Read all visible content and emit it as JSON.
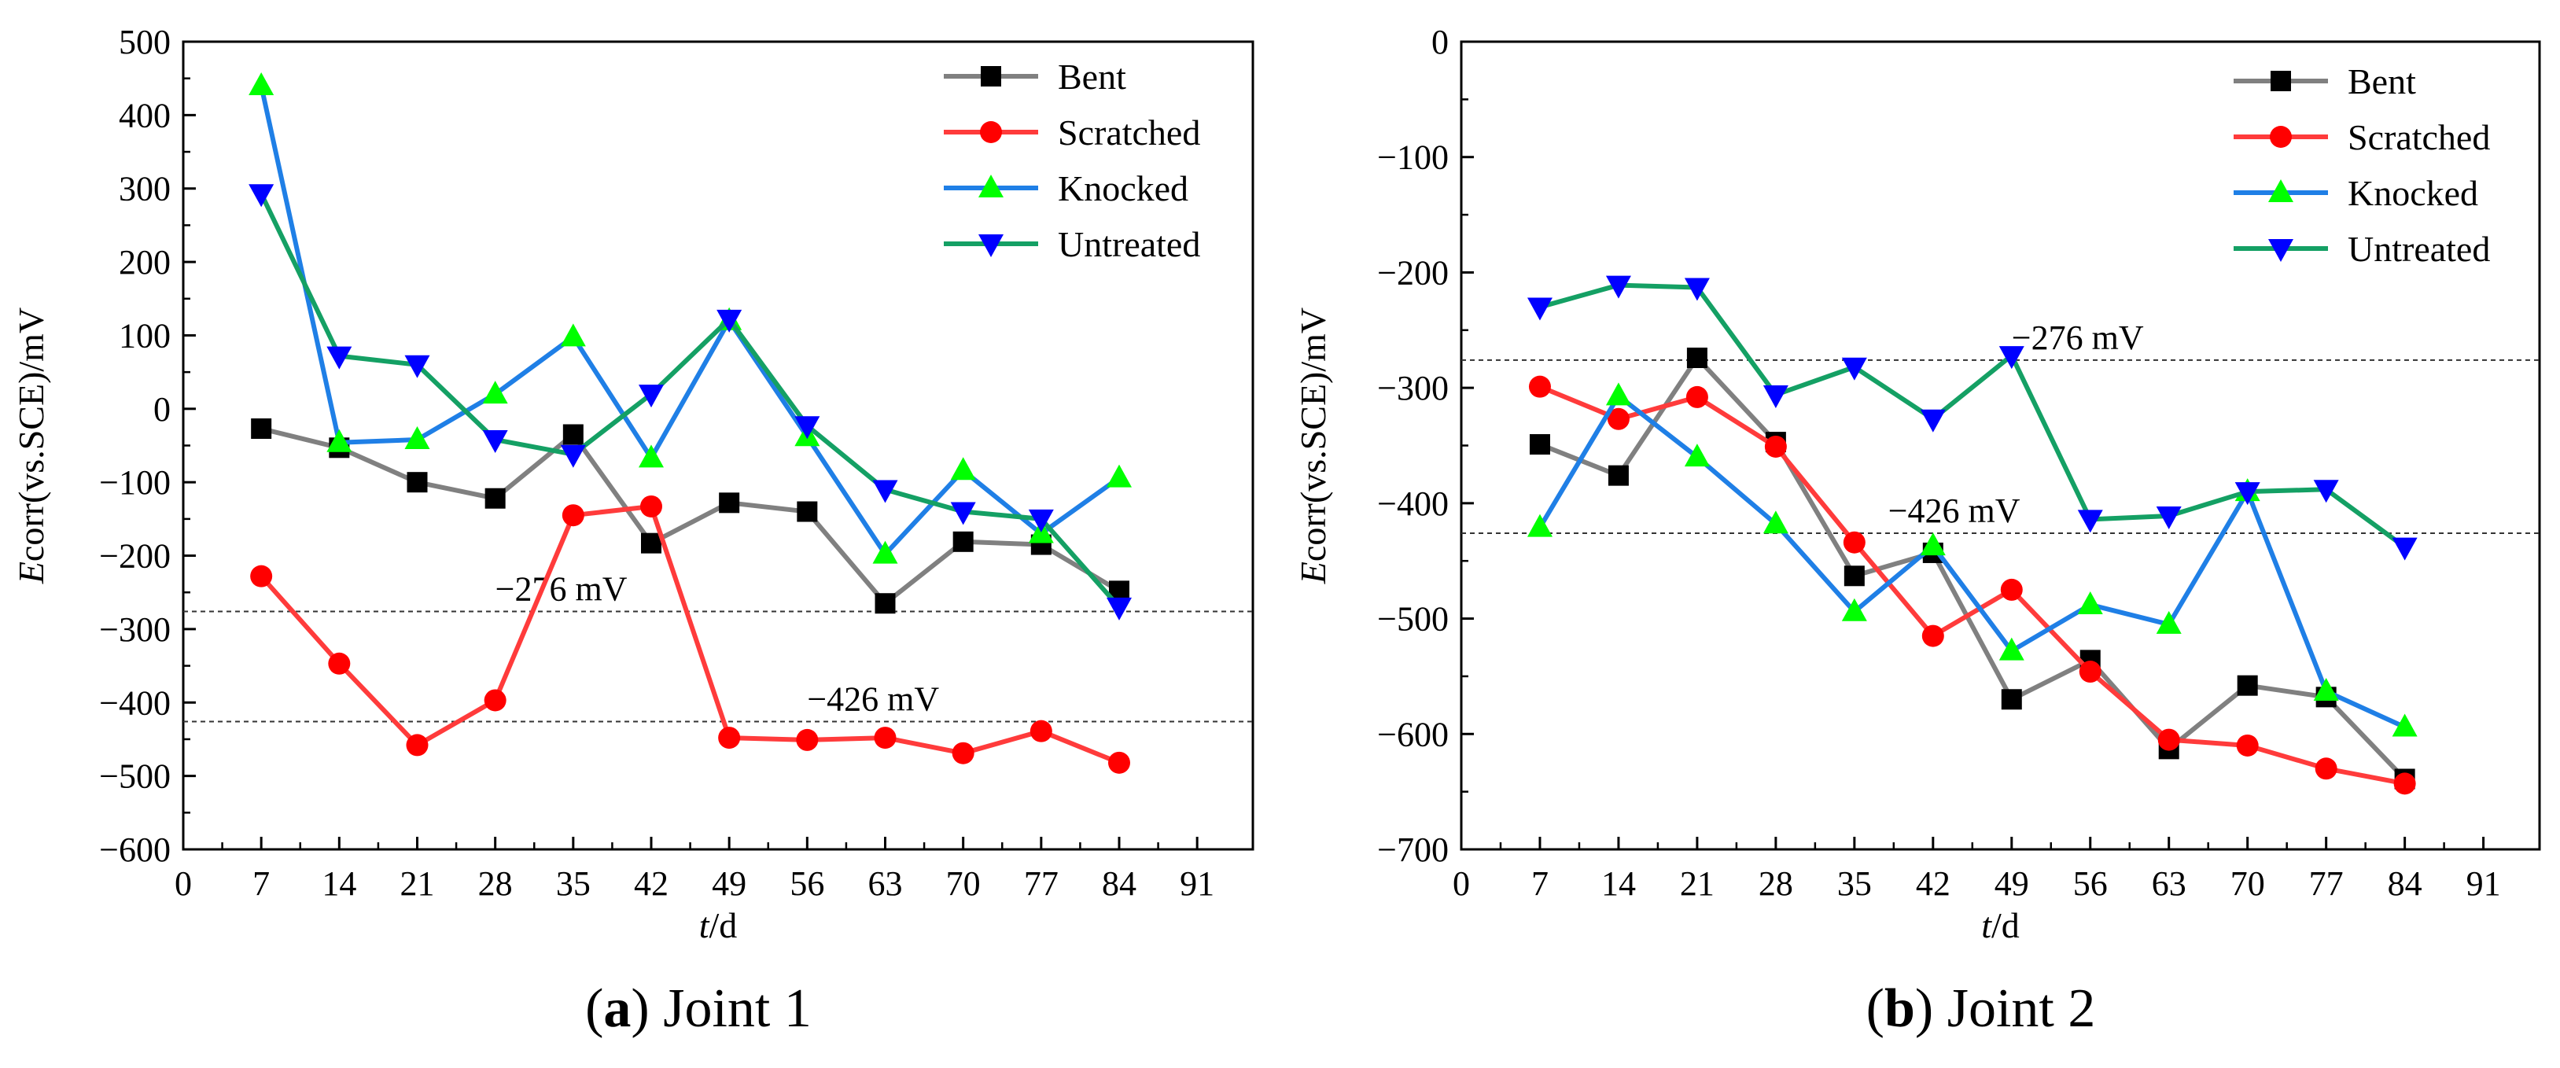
{
  "chart_data": [
    {
      "type": "line",
      "caption_letter": "a",
      "caption_text": "Joint 1",
      "x": [
        7,
        14,
        21,
        28,
        35,
        42,
        49,
        56,
        63,
        70,
        77,
        84
      ],
      "xlim": [
        0,
        96
      ],
      "xticks": [
        0,
        7,
        14,
        21,
        28,
        35,
        42,
        49,
        56,
        63,
        70,
        77,
        84,
        91
      ],
      "ylim": [
        -600,
        500
      ],
      "yticks": [
        -600,
        -500,
        -400,
        -300,
        -200,
        -100,
        0,
        100,
        200,
        300,
        400,
        500
      ],
      "xlabel_italic": "t",
      "xlabel_rest": "/d",
      "ylabel_italic": "E",
      "ylabel_rest": "corr(vs.SCE)/mV",
      "reference_lines": [
        {
          "value": -276,
          "label": "−276 mV",
          "label_x": 28
        },
        {
          "value": -426,
          "label": "−426 mV",
          "label_x": 56
        }
      ],
      "series": [
        {
          "name": "Bent",
          "color": "#808080",
          "marker": "square",
          "marker_color": "#000000",
          "values": [
            -27,
            -53,
            -100,
            -122,
            -35,
            -183,
            -128,
            -140,
            -265,
            -181,
            -185,
            -248
          ]
        },
        {
          "name": "Scratched",
          "color": "#ff3b3b",
          "marker": "circle",
          "marker_color": "#ff0000",
          "values": [
            -228,
            -347,
            -458,
            -397,
            -145,
            -133,
            -448,
            -451,
            -448,
            -469,
            -439,
            -482
          ]
        },
        {
          "name": "Knocked",
          "color": "#1f7fe6",
          "marker": "triangle-up",
          "marker_color": "#00ff00",
          "values": [
            440,
            -46,
            -42,
            20,
            98,
            -67,
            120,
            -38,
            -198,
            -84,
            -170,
            -94
          ]
        },
        {
          "name": "Untreated",
          "color": "#14a064",
          "marker": "triangle-down",
          "marker_color": "#0000ff",
          "values": [
            293,
            72,
            60,
            -42,
            -62,
            20,
            122,
            -23,
            -110,
            -140,
            -150,
            -270
          ]
        }
      ]
    },
    {
      "type": "line",
      "caption_letter": "b",
      "caption_text": "Joint 2",
      "x": [
        7,
        14,
        21,
        28,
        35,
        42,
        49,
        56,
        63,
        70,
        77,
        84
      ],
      "xlim": [
        0,
        96
      ],
      "xticks": [
        0,
        7,
        14,
        21,
        28,
        35,
        42,
        49,
        56,
        63,
        70,
        77,
        84,
        91
      ],
      "ylim": [
        -700,
        0
      ],
      "yticks": [
        -700,
        -600,
        -500,
        -400,
        -300,
        -200,
        -100,
        0
      ],
      "xlabel_italic": "t",
      "xlabel_rest": "/d",
      "ylabel_italic": "E",
      "ylabel_rest": "corr(vs.SCE)/mV",
      "reference_lines": [
        {
          "value": -276,
          "label": "−276 mV",
          "label_x": 49
        },
        {
          "value": -426,
          "label": "−426 mV",
          "label_x": 38
        }
      ],
      "series": [
        {
          "name": "Bent",
          "color": "#808080",
          "marker": "square",
          "marker_color": "#000000",
          "values": [
            -349,
            -376,
            -274,
            -347,
            -463,
            -443,
            -570,
            -536,
            -613,
            -558,
            -568,
            -639
          ]
        },
        {
          "name": "Scratched",
          "color": "#ff3b3b",
          "marker": "circle",
          "marker_color": "#ff0000",
          "values": [
            -299,
            -327,
            -308,
            -351,
            -434,
            -515,
            -475,
            -546,
            -605,
            -610,
            -630,
            -643
          ]
        },
        {
          "name": "Knocked",
          "color": "#1f7fe6",
          "marker": "triangle-up",
          "marker_color": "#00ff00",
          "values": [
            -421,
            -307,
            -360,
            -418,
            -494,
            -437,
            -528,
            -488,
            -505,
            -390,
            -563,
            -594
          ]
        },
        {
          "name": "Untreated",
          "color": "#14a064",
          "marker": "triangle-down",
          "marker_color": "#0000ff",
          "values": [
            -230,
            -211,
            -213,
            -306,
            -282,
            -327,
            -272,
            -414,
            -411,
            -390,
            -388,
            -438
          ]
        }
      ]
    }
  ]
}
